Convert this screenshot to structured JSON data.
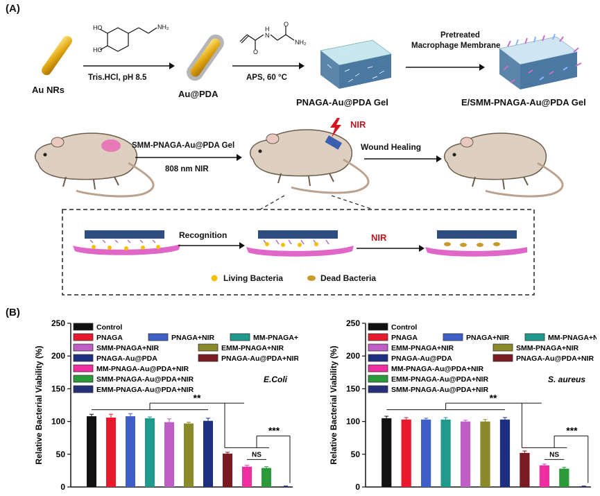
{
  "panel_a": {
    "letter": "(A)",
    "au_nrs": "Au NRs",
    "step1_condition": "Tris.HCl, pH 8.5",
    "au_pda": "Au@PDA",
    "step2_condition": "APS, 60 °C",
    "pnaga_gel": "PNAGA-Au@PDA Gel",
    "pretreated_line1": "Pretreated",
    "pretreated_line2": "Macrophage Membrane",
    "esmm_gel": "E/SMM-PNAGA-Au@PDA Gel",
    "smm_gel": "SMM-PNAGA-Au@PDA Gel",
    "nir_808": "808 nm NIR",
    "nir": "NIR",
    "wound_healing": "Wound Healing",
    "recognition": "Recognition",
    "nir_inset": "NIR",
    "living_bacteria": "Living Bacteria",
    "dead_bacteria": "Dead Bacteria",
    "chem_ho1": "HO",
    "chem_ho2": "HO",
    "chem_nh2a": "NH₂",
    "chem_nh2b": "NH₂",
    "chem_h": "H",
    "chem_n": "N",
    "chem_o1": "O",
    "chem_o2": "O"
  },
  "panel_b": {
    "letter": "(B)"
  },
  "colors": {
    "control": "#111111",
    "pnaga": "#e8192c",
    "pnaga_nir": "#3f5fc8",
    "mm_pnaga_nir": "#1f9a8c",
    "smm_pnaga_nir": "#bf5fc5",
    "emm_pnaga_nir": "#8a8a2a",
    "pnaga_aupda": "#1f2f80",
    "pnaga_aupda_nir": "#7a1a22",
    "mm_pnaga_aupda_nir": "#ef2fa0",
    "smm_pnaga_aupda_nir": "#2a9a3a",
    "emm_pnaga_aupda_nir": "#25307a"
  },
  "chart_data": [
    {
      "type": "bar",
      "title": "E.Coli",
      "ylabel": "Relative Bacterial Viability (%)",
      "ylim": [
        0,
        250
      ],
      "yticks": [
        "0",
        "50",
        "100",
        "150",
        "200",
        "250"
      ],
      "legend": [
        "Control",
        "PNAGA",
        "PNAGA+NIR",
        "MM-PNAGA+NIR",
        "SMM-PNAGA+NIR",
        "EMM-PNAGA+NIR",
        "PNAGA-Au@PDA",
        "PNAGA-Au@PDA+NIR",
        "MM-PNAGA-Au@PDA+NIR",
        "SMM-PNAGA-Au@PDA+NIR",
        "EMM-PNAGA-Au@PDA+NIR"
      ],
      "values": [
        108,
        106,
        108,
        105,
        99,
        97,
        101,
        51,
        31,
        29,
        1
      ],
      "errors": [
        3,
        5,
        4,
        2,
        5,
        2,
        4,
        2,
        2,
        2,
        0.5
      ],
      "annotations": [
        "**",
        "***",
        "NS"
      ]
    },
    {
      "type": "bar",
      "title": "S. aureus",
      "ylabel": "Relative Bacterial Viability (%)",
      "ylim": [
        0,
        250
      ],
      "yticks": [
        "0",
        "50",
        "100",
        "150",
        "200",
        "250"
      ],
      "legend": [
        "Control",
        "PNAGA",
        "PNAGA+NIR",
        "MM-PNAGA+NIR",
        "EMM-PNAGA+NIR",
        "SMM-PNAGA+NIR",
        "PNAGA-Au@PDA",
        "PNAGA-Au@PDA+NIR",
        "MM-PNAGA-Au@PDA+NIR",
        "EMM-PNAGA-Au@PDA+NIR",
        "SMM-PNAGA-Au@PDA+NIR"
      ],
      "values": [
        105,
        103,
        103,
        103,
        100,
        100,
        103,
        52,
        33,
        28,
        1
      ],
      "errors": [
        3,
        3,
        2,
        3,
        2,
        3,
        3,
        3,
        2,
        2,
        0.5
      ],
      "annotations": [
        "**",
        "***",
        "NS"
      ]
    }
  ]
}
